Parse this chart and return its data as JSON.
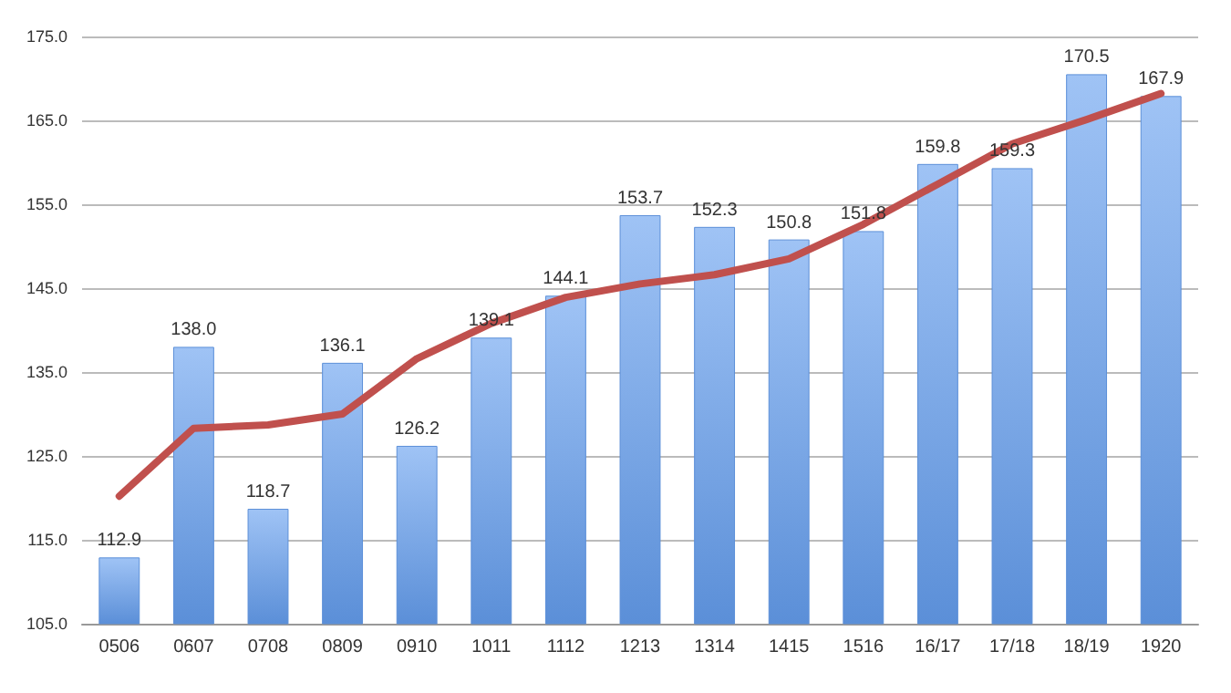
{
  "chart_data": {
    "type": "bar",
    "categories": [
      "0506",
      "0607",
      "0708",
      "0809",
      "0910",
      "1011",
      "1112",
      "1213",
      "1314",
      "1415",
      "1516",
      "16/17",
      "17/18",
      "18/19",
      "1920"
    ],
    "series": [
      {
        "color": "#5b8fd8",
        "values": [
          112.9,
          138.0,
          118.7,
          136.1,
          126.2,
          139.1,
          144.1,
          153.7,
          152.3,
          150.8,
          151.8,
          159.8,
          159.3,
          170.5,
          167.9
        ],
        "value_labels": [
          "112.9",
          "138.0",
          "118.7",
          "136.1",
          "126.2",
          "139.1",
          "144.1",
          "153.7",
          "152.3",
          "150.8",
          "151.8",
          "159.8",
          "159.3",
          "170.5",
          "167.9"
        ]
      },
      {
        "type": "line",
        "color": "#c0504d",
        "values": [
          120.2,
          128.3,
          128.7,
          130.0,
          136.6,
          140.8,
          143.9,
          145.5,
          146.6,
          148.5,
          152.6,
          157.4,
          162.2,
          165.1,
          168.2
        ]
      }
    ],
    "ylim": [
      105,
      175
    ],
    "yticks": [
      {
        "value": 105,
        "label": "105.0"
      },
      {
        "value": 115,
        "label": "115.0"
      },
      {
        "value": 125,
        "label": "125.0"
      },
      {
        "value": 135,
        "label": "135.0"
      },
      {
        "value": 145,
        "label": "145.0"
      },
      {
        "value": 155,
        "label": "155.0"
      },
      {
        "value": 165,
        "label": "165.0"
      },
      {
        "value": 175,
        "label": "175.0"
      }
    ],
    "grid": "y",
    "marker": "none",
    "line_style": "solid"
  }
}
